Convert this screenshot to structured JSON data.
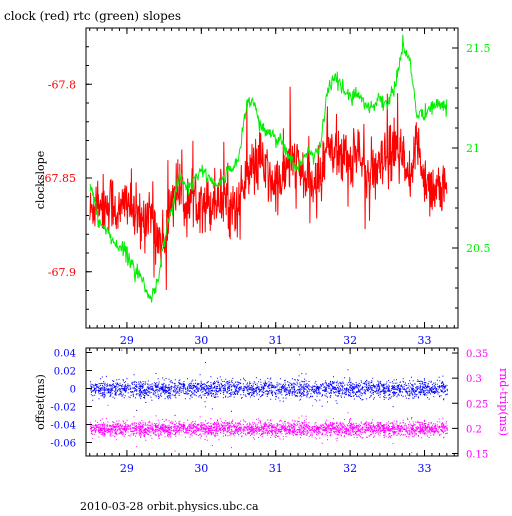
{
  "title": "clock (red) rtc (green) slopes",
  "footer": "2010-03-28  orbit.physics.ubc.ca",
  "colors": {
    "clock": "#ff0000",
    "rtc": "#00ee00",
    "offset": "#0000ff",
    "rndtrip": "#ff00ff",
    "axis": "#000000",
    "tick_x": "#0000ff"
  },
  "chart_data": [
    {
      "type": "line",
      "ylabel": "clockslope",
      "y2label": "",
      "xlim": [
        28.45,
        33.45
      ],
      "ylim": [
        -67.93,
        -67.77
      ],
      "y2lim": [
        20.1,
        21.6
      ],
      "xticks": [
        "29",
        "30",
        "31",
        "32",
        "33"
      ],
      "yticks": [
        "-67.8",
        "-67.85",
        "-67.9"
      ],
      "y2ticks": [
        "21.5",
        "21",
        "20.5"
      ],
      "grid": false,
      "series": [
        {
          "name": "clock",
          "axis": "left",
          "x": [
            28.5,
            28.6,
            28.7,
            28.8,
            28.9,
            29.0,
            29.1,
            29.2,
            29.3,
            29.4,
            29.5,
            29.6,
            29.7,
            29.8,
            29.9,
            30.0,
            30.1,
            30.2,
            30.3,
            30.4,
            30.5,
            30.6,
            30.7,
            30.8,
            30.9,
            31.0,
            31.1,
            31.2,
            31.3,
            31.4,
            31.5,
            31.6,
            31.7,
            31.8,
            31.9,
            32.0,
            32.1,
            32.2,
            32.3,
            32.4,
            32.5,
            32.6,
            32.7,
            32.8,
            32.9,
            33.0,
            33.1,
            33.2,
            33.3
          ],
          "y": [
            -67.87,
            -67.86,
            -67.865,
            -67.862,
            -67.87,
            -67.86,
            -67.87,
            -67.875,
            -67.865,
            -67.88,
            -67.885,
            -67.86,
            -67.855,
            -67.865,
            -67.86,
            -67.86,
            -67.865,
            -67.86,
            -67.862,
            -67.865,
            -67.865,
            -67.85,
            -67.845,
            -67.84,
            -67.85,
            -67.855,
            -67.85,
            -67.84,
            -67.845,
            -67.85,
            -67.855,
            -67.85,
            -67.83,
            -67.835,
            -67.84,
            -67.84,
            -67.835,
            -67.845,
            -67.85,
            -67.845,
            -67.84,
            -67.835,
            -67.84,
            -67.855,
            -67.83,
            -67.85,
            -67.855,
            -67.855,
            -67.86
          ]
        },
        {
          "name": "rtc",
          "axis": "right",
          "x": [
            28.5,
            28.6,
            28.7,
            28.8,
            28.9,
            29.0,
            29.1,
            29.2,
            29.3,
            29.4,
            29.5,
            29.6,
            29.7,
            29.8,
            29.9,
            30.0,
            30.1,
            30.2,
            30.3,
            30.4,
            30.5,
            30.6,
            30.7,
            30.8,
            30.9,
            31.0,
            31.1,
            31.2,
            31.3,
            31.4,
            31.5,
            31.6,
            31.7,
            31.8,
            31.9,
            32.0,
            32.1,
            32.2,
            32.3,
            32.4,
            32.5,
            32.6,
            32.7,
            32.8,
            32.9,
            33.0,
            33.1,
            33.2,
            33.3
          ],
          "y": [
            20.85,
            20.65,
            20.6,
            20.55,
            20.5,
            20.48,
            20.4,
            20.35,
            20.25,
            20.3,
            20.55,
            20.7,
            20.85,
            20.8,
            20.82,
            20.9,
            20.85,
            20.8,
            20.85,
            20.9,
            20.95,
            21.2,
            21.25,
            21.1,
            21.08,
            21.05,
            21.02,
            20.95,
            20.9,
            20.95,
            20.98,
            21.0,
            21.3,
            21.35,
            21.3,
            21.25,
            21.28,
            21.22,
            21.2,
            21.25,
            21.22,
            21.3,
            21.5,
            21.45,
            21.15,
            21.18,
            21.2,
            21.22,
            21.2
          ]
        }
      ]
    },
    {
      "type": "scatter",
      "ylabel": "offset(ms)",
      "y2label": "rnd-trip(ms)",
      "xlim": [
        28.45,
        33.45
      ],
      "ylim": [
        -0.075,
        0.045
      ],
      "y2lim": [
        0.145,
        0.36
      ],
      "xticks": [
        "29",
        "30",
        "31",
        "32",
        "33"
      ],
      "yticks": [
        "0.04",
        "0.02",
        "0",
        "-0.02",
        "-0.04",
        "-0.06"
      ],
      "y2ticks": [
        "0.35",
        "0.3",
        "0.25",
        "0.2",
        "0.15"
      ],
      "grid": false,
      "series": [
        {
          "name": "offset",
          "axis": "left",
          "center": 0.0,
          "spread": 0.008,
          "x_range": [
            28.5,
            33.3
          ]
        },
        {
          "name": "rnd-trip",
          "axis": "right",
          "center": 0.2,
          "spread": 0.012,
          "x_range": [
            28.5,
            33.3
          ]
        }
      ]
    }
  ]
}
